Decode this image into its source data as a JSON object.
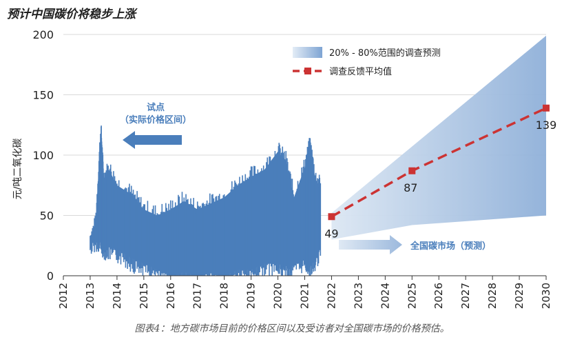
{
  "title": "预计中国碳价将稳步上涨",
  "caption": "图表4：地方碳市场目前的价格区间以及受访者对全国碳市场的价格预估。",
  "chart_data": {
    "type": "area",
    "ylabel": "元/吨二氧化碳",
    "xlabel": "",
    "ylim": [
      0,
      200
    ],
    "yticks": [
      0,
      50,
      100,
      150,
      200
    ],
    "x_tick_labels": [
      "2012",
      "2013",
      "2014",
      "2015",
      "2016",
      "2017",
      "2018",
      "2019",
      "2020",
      "2021",
      "2022",
      "2023",
      "2024",
      "2025",
      "2026",
      "2027",
      "2028",
      "2029",
      "2030"
    ],
    "grid": "horizontal",
    "legend_position": "top-right",
    "legend": {
      "band_label": "20% - 80%范围的调查预测",
      "mean_label": "调查反馈平均值"
    },
    "historical": {
      "label": "试点",
      "sublabel": "（实际价格区间）",
      "range_points": [
        {
          "x": 2013.0,
          "low": 28,
          "high": 30
        },
        {
          "x": 2013.2,
          "low": 32,
          "high": 42
        },
        {
          "x": 2013.4,
          "low": 30,
          "high": 122
        },
        {
          "x": 2013.5,
          "low": 25,
          "high": 80
        },
        {
          "x": 2013.7,
          "low": 24,
          "high": 88
        },
        {
          "x": 2014.0,
          "low": 22,
          "high": 75
        },
        {
          "x": 2014.5,
          "low": 15,
          "high": 68
        },
        {
          "x": 2015.0,
          "low": 10,
          "high": 55
        },
        {
          "x": 2015.5,
          "low": 5,
          "high": 50
        },
        {
          "x": 2016.0,
          "low": 0,
          "high": 55
        },
        {
          "x": 2016.5,
          "low": 3,
          "high": 62
        },
        {
          "x": 2017.0,
          "low": 0,
          "high": 55
        },
        {
          "x": 2017.5,
          "low": 2,
          "high": 60
        },
        {
          "x": 2018.0,
          "low": 0,
          "high": 65
        },
        {
          "x": 2018.5,
          "low": 5,
          "high": 75
        },
        {
          "x": 2019.0,
          "low": 5,
          "high": 82
        },
        {
          "x": 2019.5,
          "low": 10,
          "high": 88
        },
        {
          "x": 2020.0,
          "low": 10,
          "high": 103
        },
        {
          "x": 2020.3,
          "low": 8,
          "high": 95
        },
        {
          "x": 2020.6,
          "low": 10,
          "high": 65
        },
        {
          "x": 2021.0,
          "low": 15,
          "high": 90
        },
        {
          "x": 2021.2,
          "low": 10,
          "high": 108
        },
        {
          "x": 2021.4,
          "low": 15,
          "high": 80
        },
        {
          "x": 2021.6,
          "low": 25,
          "high": 73
        }
      ]
    },
    "forecast": {
      "label": "全国碳市场（预测）",
      "mean": [
        {
          "x": 2022,
          "y": 49,
          "label": "49"
        },
        {
          "x": 2025,
          "y": 87,
          "label": "87"
        },
        {
          "x": 2030,
          "y": 139,
          "label": "139"
        }
      ],
      "band": {
        "upper": [
          {
            "x": 2022,
            "y": 52
          },
          {
            "x": 2030,
            "y": 199
          }
        ],
        "lower": [
          {
            "x": 2022,
            "y": 30
          },
          {
            "x": 2025,
            "y": 42
          },
          {
            "x": 2030,
            "y": 50
          }
        ]
      }
    },
    "colors": {
      "historical": "#4a7ebb",
      "band": "#9cb9dd",
      "mean_line": "#cc3333",
      "axis": "#333333",
      "grid": "#d9d9d9"
    }
  }
}
